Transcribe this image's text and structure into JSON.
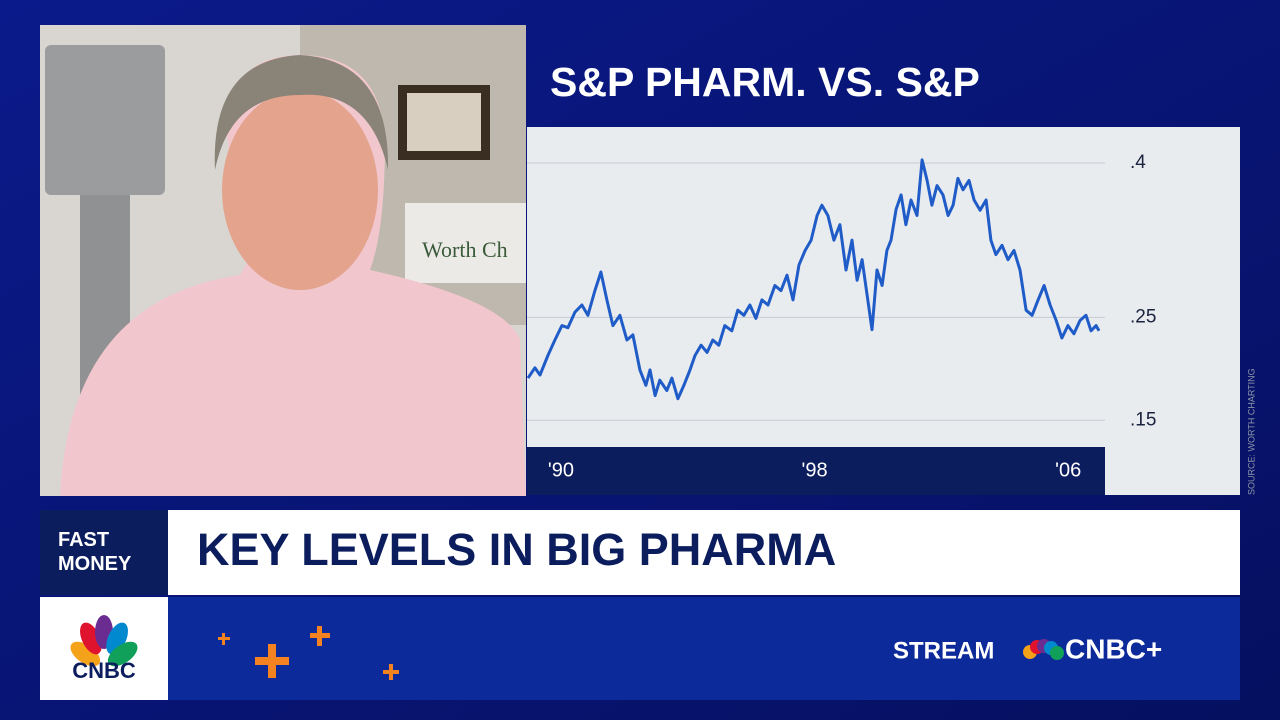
{
  "chart_data": {
    "type": "line",
    "title": "S&P PHARM. VS. S&P",
    "source": "SOURCE: WORTH CHARTING",
    "x": [
      1988.96,
      1989.18,
      1989.34,
      1989.59,
      1989.81,
      1990.03,
      1990.22,
      1990.44,
      1990.66,
      1990.85,
      1991.07,
      1991.26,
      1991.45,
      1991.64,
      1991.86,
      1992.08,
      1992.27,
      1992.49,
      1992.68,
      1992.81,
      1992.97,
      1993.12,
      1993.34,
      1993.5,
      1993.69,
      1993.88,
      1994.07,
      1994.23,
      1994.42,
      1994.61,
      1994.79,
      1994.98,
      1995.17,
      1995.39,
      1995.58,
      1995.77,
      1995.96,
      1996.15,
      1996.34,
      1996.53,
      1996.75,
      1996.94,
      1997.13,
      1997.32,
      1997.51,
      1997.7,
      1997.89,
      1998.08,
      1998.23,
      1998.42,
      1998.61,
      1998.8,
      1998.99,
      1999.18,
      1999.34,
      1999.5,
      1999.68,
      1999.81,
      1999.97,
      2000.13,
      2000.28,
      2000.41,
      2000.57,
      2000.73,
      2000.88,
      2001.04,
      2001.23,
      2001.39,
      2001.55,
      2001.7,
      2001.86,
      2002.05,
      2002.21,
      2002.37,
      2002.52,
      2002.68,
      2002.87,
      2003.03,
      2003.22,
      2003.41,
      2003.56,
      2003.72,
      2003.91,
      2004.1,
      2004.29,
      2004.48,
      2004.67,
      2004.86,
      2005.05,
      2005.24,
      2005.43,
      2005.62,
      2005.8,
      2005.99,
      2006.18,
      2006.37,
      2006.56,
      2006.72,
      2006.88,
      2006.97
    ],
    "values": [
      0.191,
      0.201,
      0.194,
      0.213,
      0.228,
      0.242,
      0.24,
      0.255,
      0.262,
      0.252,
      0.276,
      0.294,
      0.267,
      0.242,
      0.252,
      0.228,
      0.233,
      0.199,
      0.184,
      0.199,
      0.174,
      0.189,
      0.179,
      0.191,
      0.171,
      0.184,
      0.199,
      0.213,
      0.223,
      0.216,
      0.228,
      0.223,
      0.242,
      0.237,
      0.257,
      0.252,
      0.262,
      0.249,
      0.267,
      0.262,
      0.281,
      0.276,
      0.291,
      0.267,
      0.301,
      0.315,
      0.325,
      0.349,
      0.359,
      0.349,
      0.325,
      0.34,
      0.296,
      0.325,
      0.286,
      0.306,
      0.267,
      0.238,
      0.296,
      0.281,
      0.315,
      0.325,
      0.355,
      0.369,
      0.34,
      0.364,
      0.349,
      0.403,
      0.383,
      0.359,
      0.378,
      0.369,
      0.349,
      0.359,
      0.385,
      0.374,
      0.383,
      0.364,
      0.354,
      0.364,
      0.325,
      0.311,
      0.32,
      0.306,
      0.315,
      0.296,
      0.257,
      0.252,
      0.267,
      0.281,
      0.262,
      0.247,
      0.23,
      0.242,
      0.234,
      0.247,
      0.252,
      0.237,
      0.242,
      0.237
    ],
    "color": "#1f5cc8",
    "grid": true,
    "xlim": [
      1988.93,
      2007.16
    ],
    "xticks": [
      {
        "value": 1990,
        "label": "'90"
      },
      {
        "value": 1998,
        "label": "'98"
      },
      {
        "value": 2006,
        "label": "'06"
      }
    ],
    "ylim": [
      0.126,
      0.434
    ],
    "yticks": [
      {
        "value": 0.4,
        "label": ".4"
      },
      {
        "value": 0.25,
        "label": ".25"
      },
      {
        "value": 0.15,
        "label": ".15"
      }
    ]
  },
  "video": {
    "sign": "Worth Ch"
  },
  "lower_third": {
    "show": "FAST MONEY",
    "headline": "KEY LEVELS IN BIG PHARMA",
    "logo": "CNBC",
    "stream": "STREAM",
    "service": "CNBC+"
  }
}
